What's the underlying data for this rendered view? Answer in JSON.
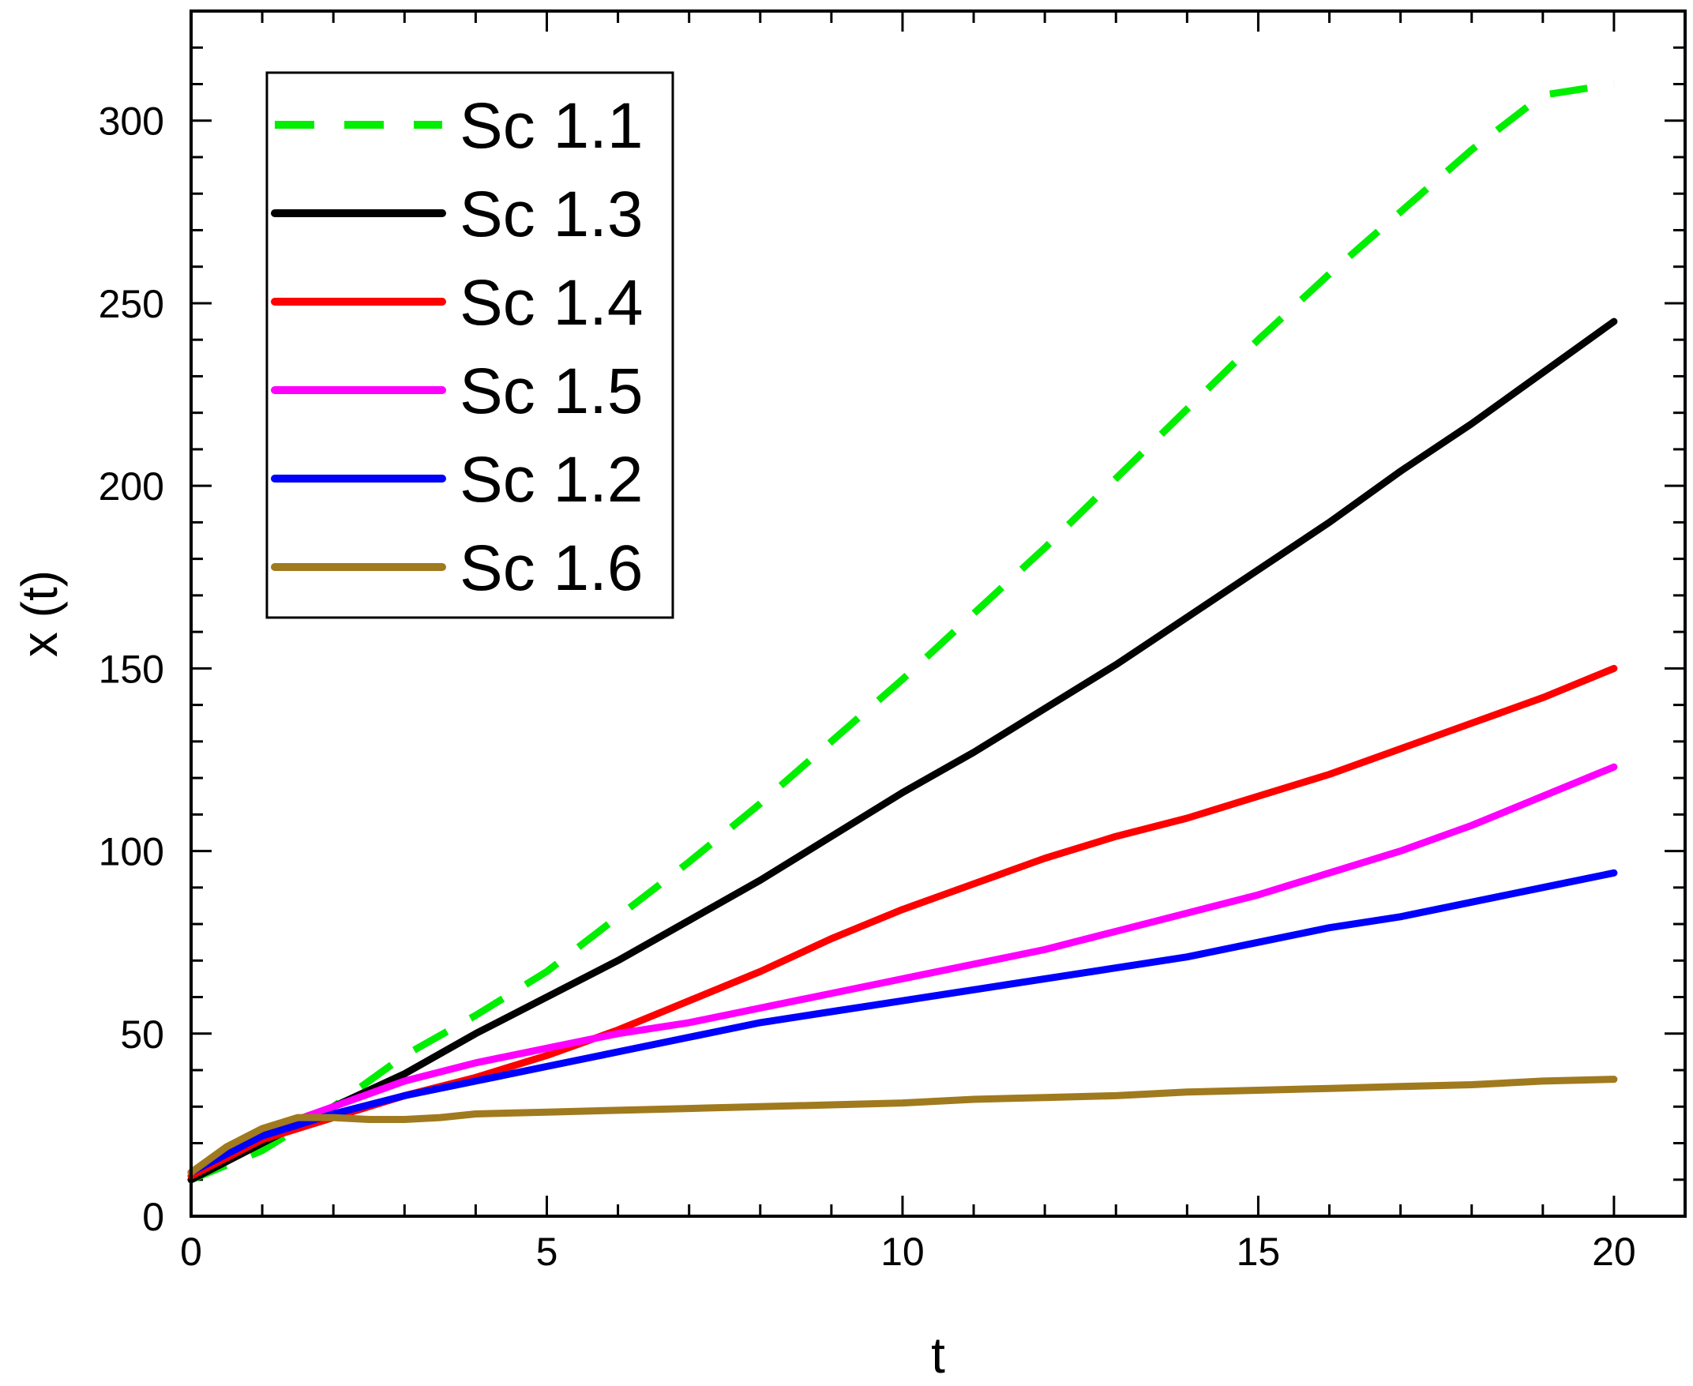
{
  "chart_data": {
    "type": "line",
    "title": "",
    "xlabel": "t",
    "ylabel": "x (t)",
    "xlim": [
      0,
      21
    ],
    "ylim": [
      0,
      330
    ],
    "xticks": [
      0,
      5,
      10,
      15,
      20
    ],
    "yticks": [
      0,
      50,
      100,
      150,
      200,
      250,
      300
    ],
    "x_minor_step": 1,
    "y_minor_step": 10,
    "grid": false,
    "legend_position": "top-left",
    "series": [
      {
        "name": "Sc 1.1",
        "color": "#00ee00",
        "dashed": true,
        "points": [
          [
            0,
            10
          ],
          [
            1,
            18
          ],
          [
            2,
            30
          ],
          [
            3,
            44
          ],
          [
            4,
            55
          ],
          [
            5,
            67
          ],
          [
            6,
            82
          ],
          [
            7,
            97
          ],
          [
            8,
            113
          ],
          [
            9,
            130
          ],
          [
            10,
            147
          ],
          [
            11,
            165
          ],
          [
            12,
            183
          ],
          [
            13,
            202
          ],
          [
            14,
            221
          ],
          [
            15,
            240
          ],
          [
            16,
            258
          ],
          [
            17,
            275
          ],
          [
            18,
            292
          ],
          [
            19,
            307
          ],
          [
            20,
            310
          ]
        ]
      },
      {
        "name": "Sc 1.3",
        "color": "#000000",
        "dashed": false,
        "points": [
          [
            0,
            10
          ],
          [
            1,
            20
          ],
          [
            2,
            30
          ],
          [
            3,
            39
          ],
          [
            4,
            50
          ],
          [
            5,
            60
          ],
          [
            6,
            70
          ],
          [
            7,
            81
          ],
          [
            8,
            92
          ],
          [
            9,
            104
          ],
          [
            10,
            116
          ],
          [
            11,
            127
          ],
          [
            12,
            139
          ],
          [
            13,
            151
          ],
          [
            14,
            164
          ],
          [
            15,
            177
          ],
          [
            16,
            190
          ],
          [
            17,
            204
          ],
          [
            18,
            217
          ],
          [
            19,
            231
          ],
          [
            20,
            245
          ]
        ]
      },
      {
        "name": "Sc 1.4",
        "color": "#ff0000",
        "dashed": false,
        "points": [
          [
            0,
            11
          ],
          [
            1,
            21
          ],
          [
            2,
            27
          ],
          [
            3,
            33
          ],
          [
            4,
            38
          ],
          [
            5,
            44
          ],
          [
            6,
            51
          ],
          [
            7,
            59
          ],
          [
            8,
            67
          ],
          [
            9,
            76
          ],
          [
            10,
            84
          ],
          [
            11,
            91
          ],
          [
            12,
            98
          ],
          [
            13,
            104
          ],
          [
            14,
            109
          ],
          [
            15,
            115
          ],
          [
            16,
            121
          ],
          [
            17,
            128
          ],
          [
            18,
            135
          ],
          [
            19,
            142
          ],
          [
            20,
            150
          ]
        ]
      },
      {
        "name": "Sc 1.5",
        "color": "#ff00ff",
        "dashed": false,
        "points": [
          [
            0,
            12
          ],
          [
            1,
            23
          ],
          [
            2,
            30
          ],
          [
            3,
            37
          ],
          [
            4,
            42
          ],
          [
            5,
            46
          ],
          [
            6,
            50
          ],
          [
            7,
            53
          ],
          [
            8,
            57
          ],
          [
            9,
            61
          ],
          [
            10,
            65
          ],
          [
            11,
            69
          ],
          [
            12,
            73
          ],
          [
            13,
            78
          ],
          [
            14,
            83
          ],
          [
            15,
            88
          ],
          [
            16,
            94
          ],
          [
            17,
            100
          ],
          [
            18,
            107
          ],
          [
            19,
            115
          ],
          [
            20,
            123
          ]
        ]
      },
      {
        "name": "Sc 1.2",
        "color": "#0000ff",
        "dashed": false,
        "points": [
          [
            0,
            12
          ],
          [
            1,
            22
          ],
          [
            2,
            28
          ],
          [
            3,
            33
          ],
          [
            4,
            37
          ],
          [
            5,
            41
          ],
          [
            6,
            45
          ],
          [
            7,
            49
          ],
          [
            8,
            53
          ],
          [
            9,
            56
          ],
          [
            10,
            59
          ],
          [
            11,
            62
          ],
          [
            12,
            65
          ],
          [
            13,
            68
          ],
          [
            14,
            71
          ],
          [
            15,
            75
          ],
          [
            16,
            79
          ],
          [
            17,
            82
          ],
          [
            18,
            86
          ],
          [
            19,
            90
          ],
          [
            20,
            94
          ]
        ]
      },
      {
        "name": "Sc 1.6",
        "color": "#a07a1e",
        "dashed": false,
        "points": [
          [
            0,
            12
          ],
          [
            0.5,
            19
          ],
          [
            1,
            24
          ],
          [
            1.5,
            27
          ],
          [
            2,
            27
          ],
          [
            2.5,
            26.5
          ],
          [
            3,
            26.5
          ],
          [
            3.5,
            27
          ],
          [
            4,
            28
          ],
          [
            5,
            28.5
          ],
          [
            6,
            29
          ],
          [
            7,
            29.5
          ],
          [
            8,
            30
          ],
          [
            9,
            30.5
          ],
          [
            10,
            31
          ],
          [
            11,
            32
          ],
          [
            12,
            32.5
          ],
          [
            13,
            33
          ],
          [
            14,
            34
          ],
          [
            15,
            34.5
          ],
          [
            16,
            35
          ],
          [
            17,
            35.5
          ],
          [
            18,
            36
          ],
          [
            19,
            37
          ],
          [
            20,
            37.5
          ]
        ]
      }
    ]
  }
}
